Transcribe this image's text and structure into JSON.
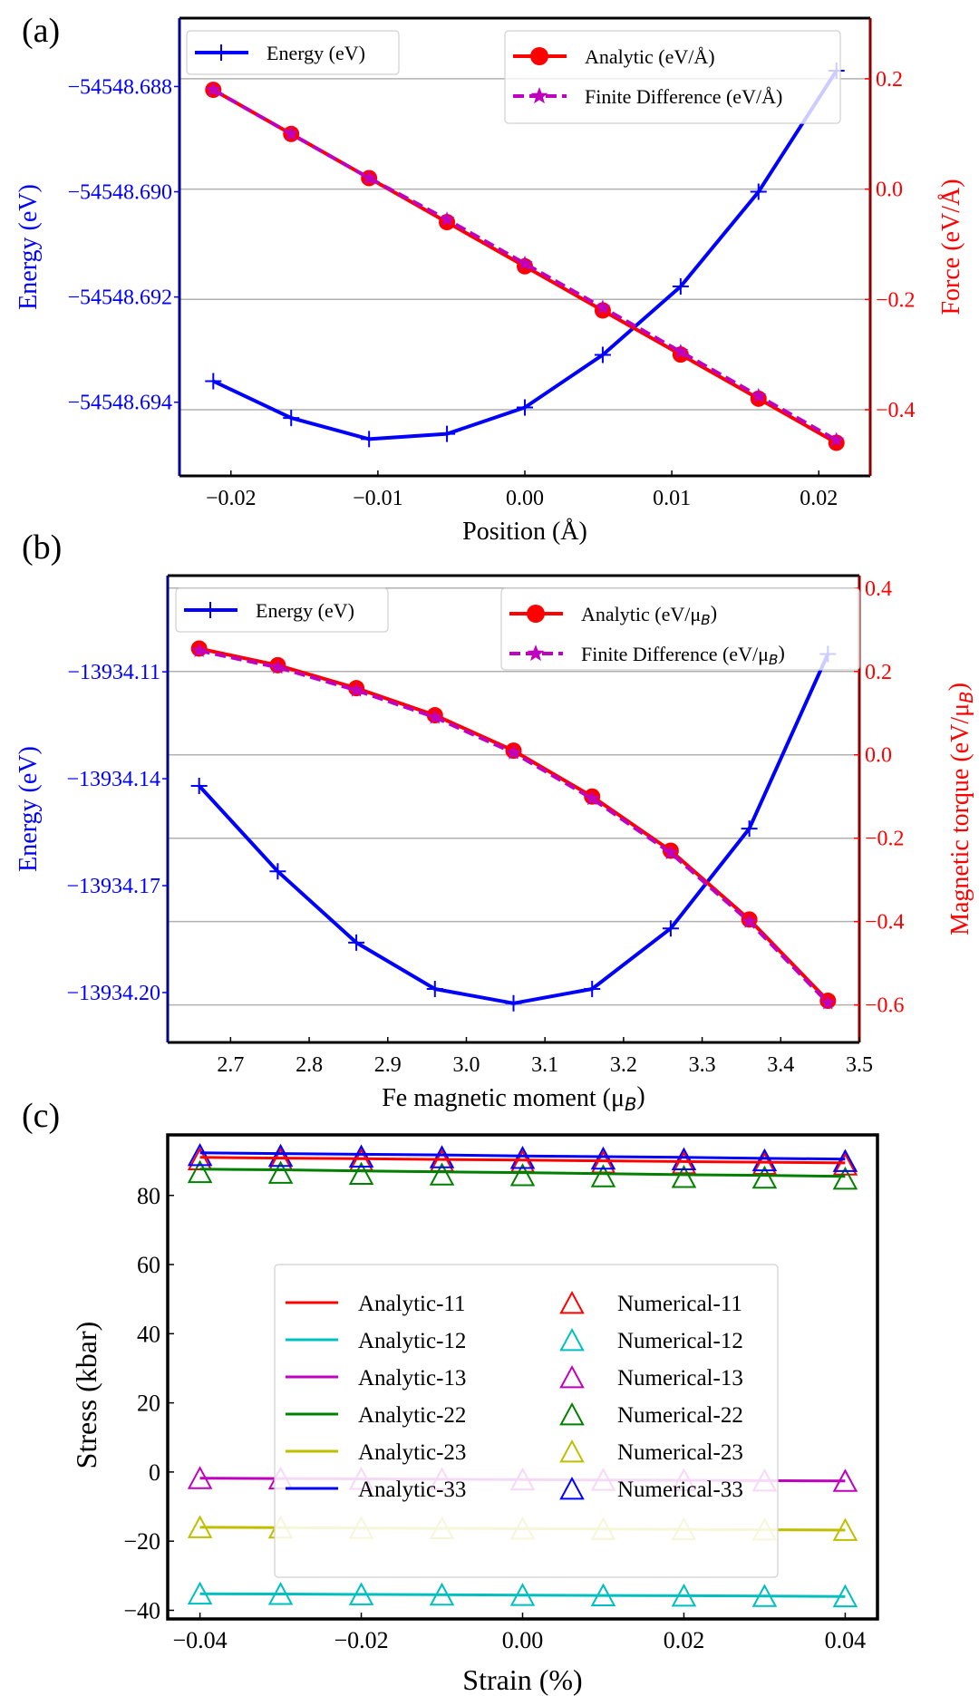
{
  "chart_data": [
    {
      "panel_label": "(a)",
      "type": "line",
      "xlabel": "Position (Å)",
      "ylabel_left": "Energy (eV)",
      "ylabel_right": "Force (eV/Å)",
      "xlim": [
        -0.0235,
        0.0235
      ],
      "ylim_left": [
        -54548.6954,
        -54548.6867
      ],
      "ylim_right": [
        -0.52,
        0.31
      ],
      "xticks": [
        -0.02,
        -0.01,
        0.0,
        0.01,
        0.02
      ],
      "xtick_labels": [
        "−0.02",
        "−0.01",
        "0.00",
        "0.01",
        "0.02"
      ],
      "yticks_left": [
        -54548.688,
        -54548.69,
        -54548.692,
        -54548.694
      ],
      "ytick_labels_left": [
        "−54548.688",
        "−54548.690",
        "−54548.692",
        "−54548.694"
      ],
      "yticks_right": [
        0.2,
        0.0,
        -0.2,
        -0.4
      ],
      "ytick_labels_right": [
        "0.2",
        "0.0",
        "−0.2",
        "−0.4"
      ],
      "grid": "horizontal (right axis)",
      "x": [
        -0.0212,
        -0.0159,
        -0.0106,
        -0.0053,
        0.0,
        0.0053,
        0.0106,
        0.0159,
        0.0212
      ],
      "series": [
        {
          "name": "Energy (eV)",
          "axis": "left",
          "color": "#0000ff",
          "marker": "plus",
          "style": "solid",
          "values": [
            -54548.6936,
            -54548.6943,
            -54548.6947,
            -54548.6946,
            -54548.6941,
            -54548.6931,
            -54548.6918,
            -54548.69,
            -54548.6877
          ]
        },
        {
          "name": "Analytic (eV/Å)",
          "axis": "right",
          "color": "#ff0000",
          "marker": "circle",
          "style": "solid",
          "values": [
            0.18,
            0.1,
            0.02,
            -0.06,
            -0.14,
            -0.22,
            -0.3,
            -0.38,
            -0.46
          ]
        },
        {
          "name": "Finite Difference (eV/Å)",
          "axis": "right",
          "color": "#bf00bf",
          "marker": "star",
          "style": "dashed",
          "values": [
            0.18,
            0.1,
            0.02,
            -0.055,
            -0.135,
            -0.215,
            -0.295,
            -0.375,
            -0.455
          ]
        }
      ],
      "legend": [
        {
          "position": "top-left",
          "entries": [
            "Energy (eV)"
          ]
        },
        {
          "position": "top-right",
          "entries": [
            "Analytic (eV/Å)",
            "Finite Difference (eV/Å)"
          ]
        }
      ]
    },
    {
      "panel_label": "(b)",
      "type": "line",
      "xlabel": "Fe magnetic moment (μB)",
      "ylabel_left": "Energy (eV)",
      "ylabel_right": "Magnetic torque (eV/μB)",
      "xlim": [
        2.62,
        3.5
      ],
      "ylim_left": [
        -13934.214,
        -13934.083
      ],
      "ylim_right": [
        -0.69,
        0.43
      ],
      "xticks": [
        2.7,
        2.8,
        2.9,
        3.0,
        3.1,
        3.2,
        3.3,
        3.4,
        3.5
      ],
      "xtick_labels": [
        "2.7",
        "2.8",
        "2.9",
        "3.0",
        "3.1",
        "3.2",
        "3.3",
        "3.4",
        "3.5"
      ],
      "yticks_left": [
        -13934.11,
        -13934.14,
        -13934.17,
        -13934.2
      ],
      "ytick_labels_left": [
        "−13934.11",
        "−13934.14",
        "−13934.17",
        "−13934.20"
      ],
      "yticks_right": [
        0.4,
        0.2,
        0.0,
        -0.2,
        -0.4,
        -0.6
      ],
      "ytick_labels_right": [
        "0.4",
        "0.2",
        "0.0",
        "−0.2",
        "−0.4",
        "−0.6"
      ],
      "grid": "horizontal (right axis)",
      "x": [
        2.66,
        2.76,
        2.86,
        2.96,
        3.06,
        3.16,
        3.26,
        3.36,
        3.46
      ],
      "series": [
        {
          "name": "Energy (eV)",
          "axis": "left",
          "color": "#0000ff",
          "marker": "plus",
          "style": "solid",
          "values": [
            -13934.142,
            -13934.166,
            -13934.186,
            -13934.199,
            -13934.203,
            -13934.199,
            -13934.182,
            -13934.154,
            -13934.105
          ]
        },
        {
          "name": "Analytic (eV/μB)",
          "axis": "right",
          "color": "#ff0000",
          "marker": "circle",
          "style": "solid",
          "values": [
            0.255,
            0.215,
            0.16,
            0.095,
            0.01,
            -0.1,
            -0.23,
            -0.395,
            -0.59
          ]
        },
        {
          "name": "Finite Difference (eV/μB)",
          "axis": "right",
          "color": "#bf00bf",
          "marker": "star",
          "style": "dashed",
          "values": [
            0.25,
            0.21,
            0.155,
            0.09,
            0.005,
            -0.105,
            -0.235,
            -0.4,
            -0.595
          ]
        }
      ],
      "legend": [
        {
          "position": "top-left",
          "entries": [
            "Energy (eV)"
          ]
        },
        {
          "position": "top-right",
          "entries": [
            "Analytic (eV/μB)",
            "Finite Difference (eV/μB)"
          ]
        }
      ]
    },
    {
      "panel_label": "(c)",
      "type": "line",
      "xlabel": "Strain (%)",
      "ylabel": "Stress (kbar)",
      "xlim": [
        -0.044,
        0.044
      ],
      "ylim": [
        -42.5,
        97.5
      ],
      "xticks": [
        -0.04,
        -0.02,
        0.0,
        0.02,
        0.04
      ],
      "xtick_labels": [
        "−0.04",
        "−0.02",
        "0.00",
        "0.02",
        "0.04"
      ],
      "yticks": [
        80,
        60,
        40,
        20,
        0,
        -20,
        -40
      ],
      "ytick_labels": [
        "80",
        "60",
        "40",
        "20",
        "0",
        "−20",
        "−40"
      ],
      "grid": "off",
      "x": [
        -0.04,
        -0.03,
        -0.02,
        -0.01,
        0.0,
        0.01,
        0.02,
        0.03,
        0.04
      ],
      "series": [
        {
          "name": "Analytic-11",
          "color": "#ff0000",
          "style": "line",
          "values": [
            91.0,
            90.8,
            90.6,
            90.4,
            90.2,
            90.0,
            89.8,
            89.6,
            89.4
          ]
        },
        {
          "name": "Analytic-12",
          "color": "#00bfbf",
          "style": "line",
          "values": [
            -35.2,
            -35.3,
            -35.4,
            -35.5,
            -35.6,
            -35.7,
            -35.8,
            -35.9,
            -36.0
          ]
        },
        {
          "name": "Analytic-13",
          "color": "#bf00bf",
          "style": "line",
          "values": [
            -1.8,
            -1.9,
            -2.0,
            -2.1,
            -2.2,
            -2.3,
            -2.4,
            -2.5,
            -2.6
          ]
        },
        {
          "name": "Analytic-22",
          "color": "#008000",
          "style": "line",
          "values": [
            87.6,
            87.4,
            87.1,
            86.8,
            86.6,
            86.3,
            86.0,
            85.8,
            85.5
          ]
        },
        {
          "name": "Analytic-23",
          "color": "#bfbf00",
          "style": "line",
          "values": [
            -16.0,
            -16.1,
            -16.2,
            -16.3,
            -16.4,
            -16.5,
            -16.6,
            -16.7,
            -16.8
          ]
        },
        {
          "name": "Analytic-33",
          "color": "#0000ff",
          "style": "line",
          "values": [
            92.3,
            92.1,
            91.9,
            91.7,
            91.4,
            91.2,
            91.0,
            90.7,
            90.5
          ]
        },
        {
          "name": "Numerical-11",
          "color": "#ff0000",
          "style": "triangle",
          "values": [
            90.0,
            89.9,
            89.7,
            89.5,
            89.3,
            89.1,
            88.9,
            88.7,
            88.5
          ]
        },
        {
          "name": "Numerical-12",
          "color": "#00bfbf",
          "style": "triangle",
          "values": [
            -35.6,
            -35.7,
            -35.8,
            -35.9,
            -36.0,
            -36.1,
            -36.2,
            -36.3,
            -36.4
          ]
        },
        {
          "name": "Numerical-13",
          "color": "#bf00bf",
          "style": "triangle",
          "values": [
            -2.2,
            -2.3,
            -2.4,
            -2.5,
            -2.6,
            -2.7,
            -2.8,
            -2.9,
            -3.0
          ]
        },
        {
          "name": "Numerical-22",
          "color": "#008000",
          "style": "triangle",
          "values": [
            86.3,
            86.1,
            85.8,
            85.6,
            85.4,
            85.1,
            84.9,
            84.7,
            84.4
          ]
        },
        {
          "name": "Numerical-23",
          "color": "#bfbf00",
          "style": "triangle",
          "values": [
            -16.4,
            -16.5,
            -16.6,
            -16.7,
            -16.8,
            -16.9,
            -17.0,
            -17.1,
            -17.2
          ]
        },
        {
          "name": "Numerical-33",
          "color": "#0000ff",
          "style": "triangle",
          "values": [
            91.2,
            91.0,
            90.8,
            90.6,
            90.4,
            90.2,
            90.0,
            89.7,
            89.5
          ]
        }
      ],
      "legend": {
        "position": "center",
        "columns": 2
      }
    }
  ]
}
